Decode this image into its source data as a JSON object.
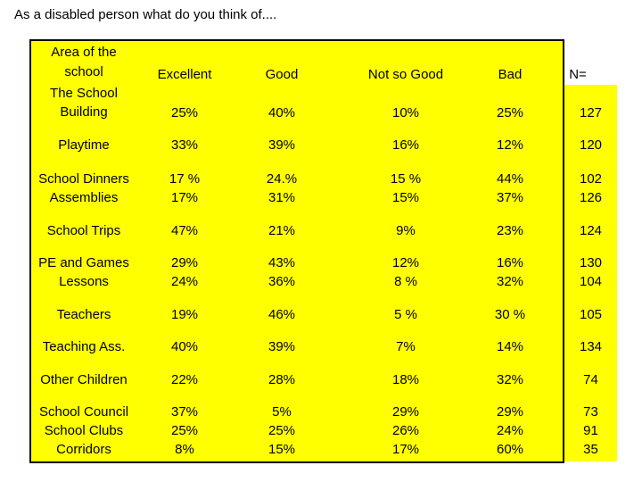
{
  "title": "As a disabled person what do you think of....",
  "header": {
    "area_lines": [
      "Area of the",
      "school"
    ],
    "excellent": "Excellent",
    "good": "Good",
    "not_so_good": "Not so Good",
    "bad": "Bad",
    "n": "N="
  },
  "rows": [
    {
      "area": [
        "The School",
        "Building"
      ],
      "excellent": [
        "25%"
      ],
      "good": [
        "40%"
      ],
      "not_so_good": [
        "10%"
      ],
      "bad": [
        "25%"
      ],
      "n": [
        "127"
      ]
    },
    {
      "area": [
        "Playtime"
      ],
      "excellent": [
        "33%"
      ],
      "good": [
        "39%"
      ],
      "not_so_good": [
        "16%"
      ],
      "bad": [
        "12%"
      ],
      "n": [
        "120"
      ]
    },
    {
      "area": [
        "School Dinners",
        "Assemblies"
      ],
      "excellent": [
        "17 %",
        "17%"
      ],
      "good": [
        "24.%",
        "31%"
      ],
      "not_so_good": [
        "15 %",
        "15%"
      ],
      "bad": [
        "44%",
        "37%"
      ],
      "n": [
        "102",
        "126"
      ]
    },
    {
      "area": [
        "School Trips"
      ],
      "excellent": [
        "47%"
      ],
      "good": [
        "21%"
      ],
      "not_so_good": [
        "9%"
      ],
      "bad": [
        "23%"
      ],
      "n": [
        "124"
      ]
    },
    {
      "area": [
        "PE and Games",
        "Lessons"
      ],
      "excellent": [
        "29%",
        "24%"
      ],
      "good": [
        "43%",
        "36%"
      ],
      "not_so_good": [
        "12%",
        "8 %"
      ],
      "bad": [
        "16%",
        "32%"
      ],
      "n": [
        "130",
        "104"
      ]
    },
    {
      "area": [
        "Teachers"
      ],
      "excellent": [
        "19%"
      ],
      "good": [
        "46%"
      ],
      "not_so_good": [
        "5 %"
      ],
      "bad": [
        "30 %"
      ],
      "n": [
        "105"
      ]
    },
    {
      "area": [
        "Teaching Ass."
      ],
      "excellent": [
        "40%"
      ],
      "good": [
        "39%"
      ],
      "not_so_good": [
        "7%"
      ],
      "bad": [
        "14%"
      ],
      "n": [
        "134"
      ]
    },
    {
      "area": [
        "Other Children"
      ],
      "excellent": [
        "22%"
      ],
      "good": [
        "28%"
      ],
      "not_so_good": [
        "18%"
      ],
      "bad": [
        "32%"
      ],
      "n": [
        "74"
      ]
    },
    {
      "area": [
        "School Council",
        "School Clubs",
        "Corridors"
      ],
      "excellent": [
        "37%",
        "25%",
        "8%"
      ],
      "good": [
        "5%",
        "25%",
        "15%"
      ],
      "not_so_good": [
        "29%",
        "26%",
        "17%"
      ],
      "bad": [
        "29%",
        "24%",
        "60%"
      ],
      "n": [
        "73",
        "91",
        "35"
      ]
    }
  ]
}
